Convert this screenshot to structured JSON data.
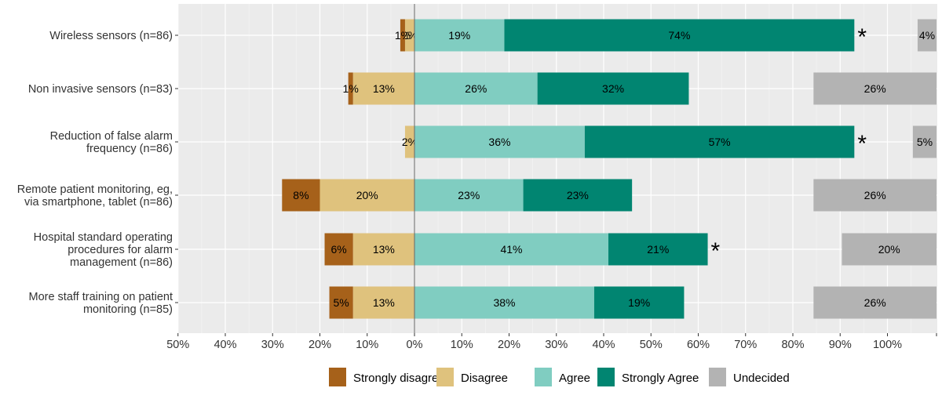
{
  "chart_data": {
    "type": "bar",
    "orientation": "horizontal-diverging-stacked",
    "categories": [
      "Wireless sensors (n=86)",
      "Non invasive sensors (n=83)",
      "Reduction of false alarm frequency (n=86)",
      "Remote patient monitoring, eg, via smartphone, tablet (n=86)",
      "Hospital standard operating procedures for alarm management (n=86)",
      "More staff training on patient monitoring (n=85)"
    ],
    "category_lines": [
      [
        "Wireless sensors (n=86)"
      ],
      [
        "Non invasive sensors (n=83)"
      ],
      [
        "Reduction of false alarm",
        "frequency (n=86)"
      ],
      [
        "Remote patient monitoring, eg,",
        "via smartphone, tablet (n=86)"
      ],
      [
        "Hospital standard operating",
        "procedures for alarm",
        "management (n=86)"
      ],
      [
        "More staff training on patient",
        "monitoring (n=85)"
      ]
    ],
    "series": [
      {
        "name": "Strongly disagree",
        "color": "#a6611a",
        "side": "negative",
        "values": [
          1,
          1,
          0,
          8,
          6,
          5
        ],
        "labels": [
          "1%",
          "1%",
          "",
          "8%",
          "6%",
          "5%"
        ]
      },
      {
        "name": "Disagree",
        "color": "#dfc27d",
        "side": "negative",
        "values": [
          2,
          13,
          2,
          20,
          13,
          13
        ],
        "labels": [
          "2%",
          "13%",
          "2%",
          "20%",
          "13%",
          "13%"
        ]
      },
      {
        "name": "Agree",
        "color": "#80cdc1",
        "side": "positive",
        "values": [
          19,
          26,
          36,
          23,
          41,
          38
        ],
        "labels": [
          "19%",
          "26%",
          "36%",
          "23%",
          "41%",
          "38%"
        ]
      },
      {
        "name": "Strongly Agree",
        "color": "#018571",
        "side": "positive",
        "values": [
          74,
          32,
          57,
          23,
          21,
          19
        ],
        "labels": [
          "74%",
          "32%",
          "57%",
          "23%",
          "21%",
          "19%"
        ]
      },
      {
        "name": "Undecided",
        "color": "#b3b3b3",
        "side": "right",
        "values": [
          4,
          26,
          5,
          26,
          20,
          26
        ],
        "labels": [
          "4%",
          "26%",
          "5%",
          "26%",
          "20%",
          "26%"
        ]
      }
    ],
    "significance": [
      "*",
      "",
      "*",
      "",
      "*",
      ""
    ],
    "xlim": [
      -50,
      110
    ],
    "xticks": [
      -50,
      -40,
      -30,
      -20,
      -10,
      0,
      10,
      20,
      30,
      40,
      50,
      60,
      70,
      80,
      90,
      100
    ],
    "xtick_labels": [
      "50%",
      "40%",
      "30%",
      "20%",
      "10%",
      "0%",
      "10%",
      "20%",
      "30%",
      "40%",
      "50%",
      "60%",
      "70%",
      "80%",
      "90%",
      "100%"
    ],
    "grid": true,
    "legend_position": "bottom"
  }
}
